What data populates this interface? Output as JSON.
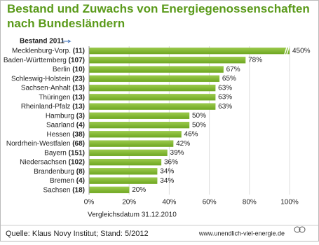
{
  "chart_data": {
    "type": "bar",
    "orientation": "horizontal",
    "title": "Bestand und Zuwachs von Energiegenossenschaften nach Bundesländern",
    "legend_label": "Bestand 2011",
    "categories": [
      "Mecklenburg-Vorp. (11)",
      "Baden-Württemberg (107)",
      "Berlin (10)",
      "Schleswig-Holstein (23)",
      "Sachsen-Anhalt (13)",
      "Thüringen (13)",
      "Rheinland-Pfalz (13)",
      "Hamburg (3)",
      "Saarland (4)",
      "Hessen (38)",
      "Nordrhein-Westfalen (68)",
      "Bayern (151)",
      "Niedersachsen (102)",
      "Brandenburg (8)",
      "Bremen (4)",
      "Sachsen (18)"
    ],
    "values": [
      450,
      78,
      67,
      65,
      63,
      63,
      63,
      50,
      50,
      46,
      42,
      39,
      36,
      34,
      34,
      20
    ],
    "value_labels": [
      "450%",
      "78%",
      "67%",
      "65%",
      "63%",
      "63%",
      "63%",
      "50%",
      "50%",
      "46%",
      "42%",
      "39%",
      "36%",
      "34%",
      "34%",
      "20%"
    ],
    "color": "#7db32a",
    "xlim": [
      0,
      100
    ],
    "xticks": [
      {
        "value": 0,
        "label": "0%"
      },
      {
        "value": 20,
        "label": "20%"
      },
      {
        "value": 40,
        "label": "40%"
      },
      {
        "value": 60,
        "label": "60%"
      },
      {
        "value": 80,
        "label": "80%"
      },
      {
        "value": 100,
        "label": "100%"
      }
    ],
    "grid": true,
    "xlabel": "Vergleichsdatum 31.12.2010",
    "source": "Quelle: Klaus Novy Institut; Stand: 5/2012",
    "website": "www.unendlich-viel-energie.de"
  }
}
